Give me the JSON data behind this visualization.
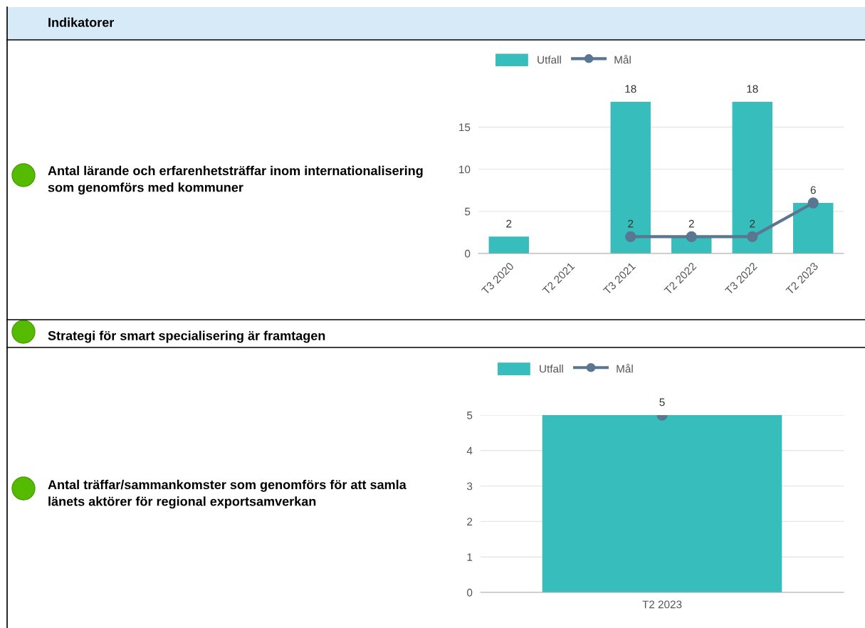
{
  "chart_data": [
    {
      "type": "bar",
      "categories": [
        "T3 2020",
        "T2 2021",
        "T3 2021",
        "T2 2022",
        "T3 2022",
        "T2 2023"
      ],
      "series": [
        {
          "name": "Utfall",
          "color": "#38bdbd",
          "values": [
            2,
            null,
            18,
            2,
            18,
            6
          ],
          "value_labels": [
            "2",
            null,
            "18",
            null,
            "18",
            null
          ]
        },
        {
          "name": "Mål",
          "type": "line",
          "color": "#5a7690",
          "values": [
            null,
            null,
            2,
            2,
            2,
            6
          ],
          "value_labels": [
            null,
            null,
            "2",
            "2",
            "2",
            "6"
          ]
        }
      ],
      "ylim": [
        0,
        18
      ],
      "yticks": [
        0,
        5,
        10,
        15
      ],
      "grid": "y",
      "legend": "top",
      "marker": "circle",
      "annotations": [
        "Indikatorer",
        "Antal lärande och erfarenhetsträffar inom internationalisering som genomförs med kommuner",
        "Strategi för smart specialisering är framtagen"
      ]
    },
    {
      "type": "bar",
      "categories": [
        "T2 2023"
      ],
      "series": [
        {
          "name": "Utfall",
          "color": "#38bdbd",
          "values": [
            5
          ],
          "value_labels": [
            null
          ]
        },
        {
          "name": "Mål",
          "type": "line",
          "color": "#5a7690",
          "values": [
            5
          ],
          "value_labels": [
            "5"
          ]
        }
      ],
      "ylim": [
        0,
        5
      ],
      "yticks": [
        0,
        1,
        2,
        3,
        4,
        5
      ],
      "grid": "y",
      "legend": "top",
      "marker": "circle",
      "annotations": [
        "Antal träffar/sammankomster som genomförs för att samla länets aktörer för regional exportsamverkan"
      ]
    }
  ]
}
